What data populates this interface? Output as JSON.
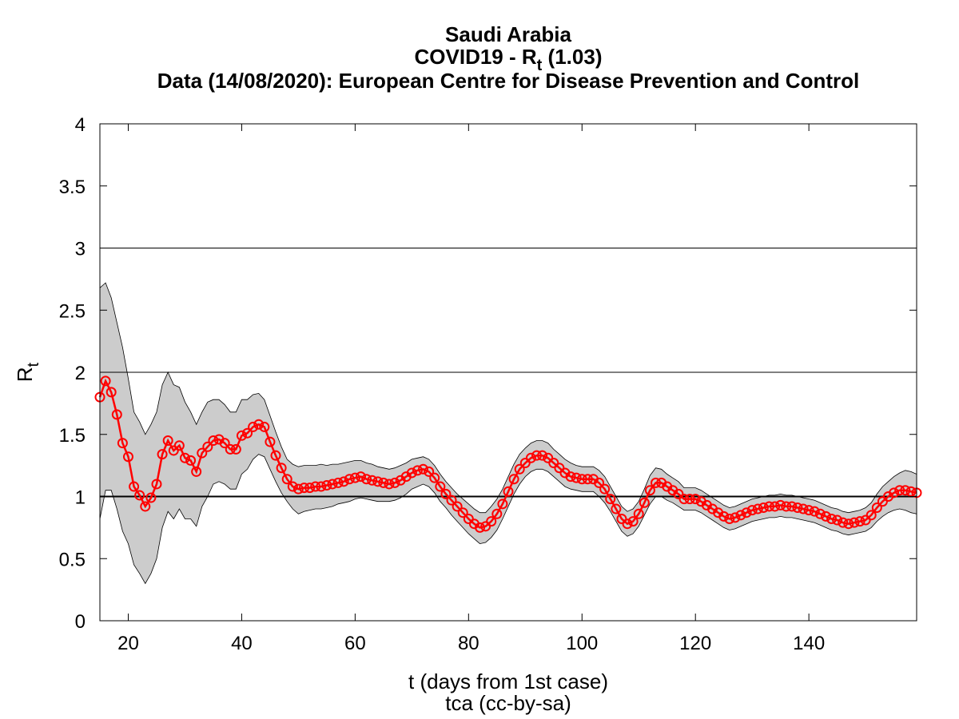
{
  "chart_data": {
    "type": "line",
    "title": [
      "Saudi Arabia",
      {
        "main": "COVID19 - R",
        "sub": "t",
        "rest": " (1.03)"
      },
      "Data (14/08/2020): European Centre for Disease Prevention and Control"
    ],
    "ylabel": {
      "main": "R",
      "sub": "t"
    },
    "xlabel": "t (days from 1st case)",
    "credit": "tca (cc-by-sa)",
    "color": "#ff0000",
    "band_color": "#cccccc",
    "hlines": [
      1,
      2,
      3
    ],
    "xlim": [
      15,
      159
    ],
    "ylim": [
      0,
      4
    ],
    "xticks": [
      20,
      40,
      60,
      80,
      100,
      120,
      140
    ],
    "yticks": [
      0,
      0.5,
      1,
      1.5,
      2,
      2.5,
      3,
      3.5,
      4
    ],
    "x": [
      15,
      16,
      17,
      18,
      19,
      20,
      21,
      22,
      23,
      24,
      25,
      26,
      27,
      28,
      29,
      30,
      31,
      32,
      33,
      34,
      35,
      36,
      37,
      38,
      39,
      40,
      41,
      42,
      43,
      44,
      45,
      46,
      47,
      48,
      49,
      50,
      51,
      52,
      53,
      54,
      55,
      56,
      57,
      58,
      59,
      60,
      61,
      62,
      63,
      64,
      65,
      66,
      67,
      68,
      69,
      70,
      71,
      72,
      73,
      74,
      75,
      76,
      77,
      78,
      79,
      80,
      81,
      82,
      83,
      84,
      85,
      86,
      87,
      88,
      89,
      90,
      91,
      92,
      93,
      94,
      95,
      96,
      97,
      98,
      99,
      100,
      101,
      102,
      103,
      104,
      105,
      106,
      107,
      108,
      109,
      110,
      111,
      112,
      113,
      114,
      115,
      116,
      117,
      118,
      119,
      120,
      121,
      122,
      123,
      124,
      125,
      126,
      127,
      128,
      129,
      130,
      131,
      132,
      133,
      134,
      135,
      136,
      137,
      138,
      139,
      140,
      141,
      142,
      143,
      144,
      145,
      146,
      147,
      148,
      149,
      150,
      151,
      152,
      153,
      154,
      155,
      156,
      157,
      158,
      159
    ],
    "values": [
      1.8,
      1.93,
      1.84,
      1.66,
      1.43,
      1.32,
      1.08,
      1.01,
      0.92,
      0.99,
      1.1,
      1.34,
      1.45,
      1.37,
      1.41,
      1.31,
      1.29,
      1.2,
      1.35,
      1.4,
      1.45,
      1.46,
      1.43,
      1.38,
      1.38,
      1.49,
      1.51,
      1.56,
      1.58,
      1.56,
      1.44,
      1.33,
      1.23,
      1.14,
      1.08,
      1.06,
      1.07,
      1.07,
      1.08,
      1.08,
      1.09,
      1.1,
      1.11,
      1.12,
      1.14,
      1.15,
      1.16,
      1.14,
      1.13,
      1.12,
      1.11,
      1.1,
      1.11,
      1.13,
      1.16,
      1.19,
      1.21,
      1.22,
      1.2,
      1.15,
      1.08,
      1.02,
      0.97,
      0.92,
      0.87,
      0.82,
      0.78,
      0.75,
      0.76,
      0.8,
      0.86,
      0.94,
      1.04,
      1.14,
      1.22,
      1.27,
      1.31,
      1.33,
      1.33,
      1.31,
      1.27,
      1.23,
      1.19,
      1.16,
      1.15,
      1.14,
      1.14,
      1.14,
      1.11,
      1.06,
      0.98,
      0.9,
      0.82,
      0.78,
      0.8,
      0.86,
      0.95,
      1.05,
      1.11,
      1.11,
      1.08,
      1.05,
      1.02,
      0.98,
      0.98,
      0.98,
      0.96,
      0.93,
      0.9,
      0.87,
      0.84,
      0.82,
      0.83,
      0.85,
      0.87,
      0.89,
      0.9,
      0.91,
      0.92,
      0.92,
      0.93,
      0.92,
      0.92,
      0.91,
      0.9,
      0.89,
      0.88,
      0.86,
      0.84,
      0.82,
      0.81,
      0.79,
      0.78,
      0.79,
      0.8,
      0.81,
      0.85,
      0.91,
      0.96,
      1.0,
      1.03,
      1.05,
      1.05,
      1.04,
      1.03
    ],
    "upper": [
      2.68,
      2.72,
      2.6,
      2.4,
      2.2,
      1.95,
      1.68,
      1.6,
      1.5,
      1.58,
      1.68,
      1.9,
      2.0,
      1.9,
      1.88,
      1.76,
      1.68,
      1.58,
      1.68,
      1.76,
      1.78,
      1.78,
      1.74,
      1.68,
      1.68,
      1.78,
      1.78,
      1.82,
      1.83,
      1.78,
      1.65,
      1.52,
      1.4,
      1.3,
      1.26,
      1.24,
      1.25,
      1.25,
      1.25,
      1.26,
      1.25,
      1.26,
      1.26,
      1.27,
      1.28,
      1.29,
      1.29,
      1.27,
      1.26,
      1.24,
      1.23,
      1.22,
      1.23,
      1.25,
      1.27,
      1.3,
      1.31,
      1.32,
      1.3,
      1.25,
      1.18,
      1.12,
      1.07,
      1.02,
      0.98,
      0.94,
      0.9,
      0.87,
      0.87,
      0.92,
      0.98,
      1.06,
      1.16,
      1.26,
      1.34,
      1.39,
      1.43,
      1.45,
      1.45,
      1.43,
      1.38,
      1.34,
      1.3,
      1.27,
      1.25,
      1.24,
      1.24,
      1.24,
      1.21,
      1.16,
      1.08,
      1.0,
      0.92,
      0.88,
      0.9,
      0.96,
      1.06,
      1.17,
      1.23,
      1.22,
      1.18,
      1.15,
      1.12,
      1.07,
      1.07,
      1.07,
      1.05,
      1.02,
      0.99,
      0.96,
      0.93,
      0.91,
      0.92,
      0.94,
      0.96,
      0.98,
      0.99,
      1.0,
      1.01,
      1.01,
      1.02,
      1.01,
      1.01,
      1.0,
      0.99,
      0.98,
      0.97,
      0.95,
      0.93,
      0.91,
      0.9,
      0.88,
      0.87,
      0.88,
      0.89,
      0.91,
      0.95,
      1.02,
      1.08,
      1.12,
      1.16,
      1.19,
      1.21,
      1.2,
      1.18
    ],
    "lower": [
      0.82,
      1.05,
      1.05,
      0.9,
      0.72,
      0.62,
      0.45,
      0.38,
      0.3,
      0.38,
      0.5,
      0.75,
      0.88,
      0.82,
      0.9,
      0.82,
      0.82,
      0.76,
      0.92,
      1.0,
      1.1,
      1.12,
      1.1,
      1.06,
      1.06,
      1.18,
      1.22,
      1.3,
      1.34,
      1.32,
      1.22,
      1.12,
      1.03,
      0.96,
      0.9,
      0.86,
      0.88,
      0.89,
      0.9,
      0.9,
      0.91,
      0.92,
      0.94,
      0.95,
      0.96,
      0.98,
      0.99,
      0.98,
      0.97,
      0.96,
      0.96,
      0.96,
      0.97,
      0.99,
      1.02,
      1.06,
      1.08,
      1.1,
      1.08,
      1.03,
      0.96,
      0.91,
      0.85,
      0.8,
      0.75,
      0.7,
      0.66,
      0.62,
      0.63,
      0.67,
      0.73,
      0.82,
      0.92,
      1.02,
      1.1,
      1.16,
      1.2,
      1.22,
      1.22,
      1.2,
      1.16,
      1.12,
      1.08,
      1.06,
      1.05,
      1.04,
      1.04,
      1.04,
      1.0,
      0.95,
      0.88,
      0.8,
      0.72,
      0.68,
      0.7,
      0.76,
      0.85,
      0.94,
      1.0,
      1.0,
      0.97,
      0.95,
      0.92,
      0.89,
      0.89,
      0.89,
      0.87,
      0.84,
      0.81,
      0.78,
      0.75,
      0.73,
      0.74,
      0.76,
      0.78,
      0.8,
      0.81,
      0.82,
      0.83,
      0.83,
      0.84,
      0.83,
      0.83,
      0.82,
      0.81,
      0.8,
      0.79,
      0.77,
      0.75,
      0.73,
      0.72,
      0.7,
      0.69,
      0.7,
      0.71,
      0.72,
      0.75,
      0.8,
      0.84,
      0.87,
      0.89,
      0.9,
      0.89,
      0.87,
      0.86
    ]
  }
}
